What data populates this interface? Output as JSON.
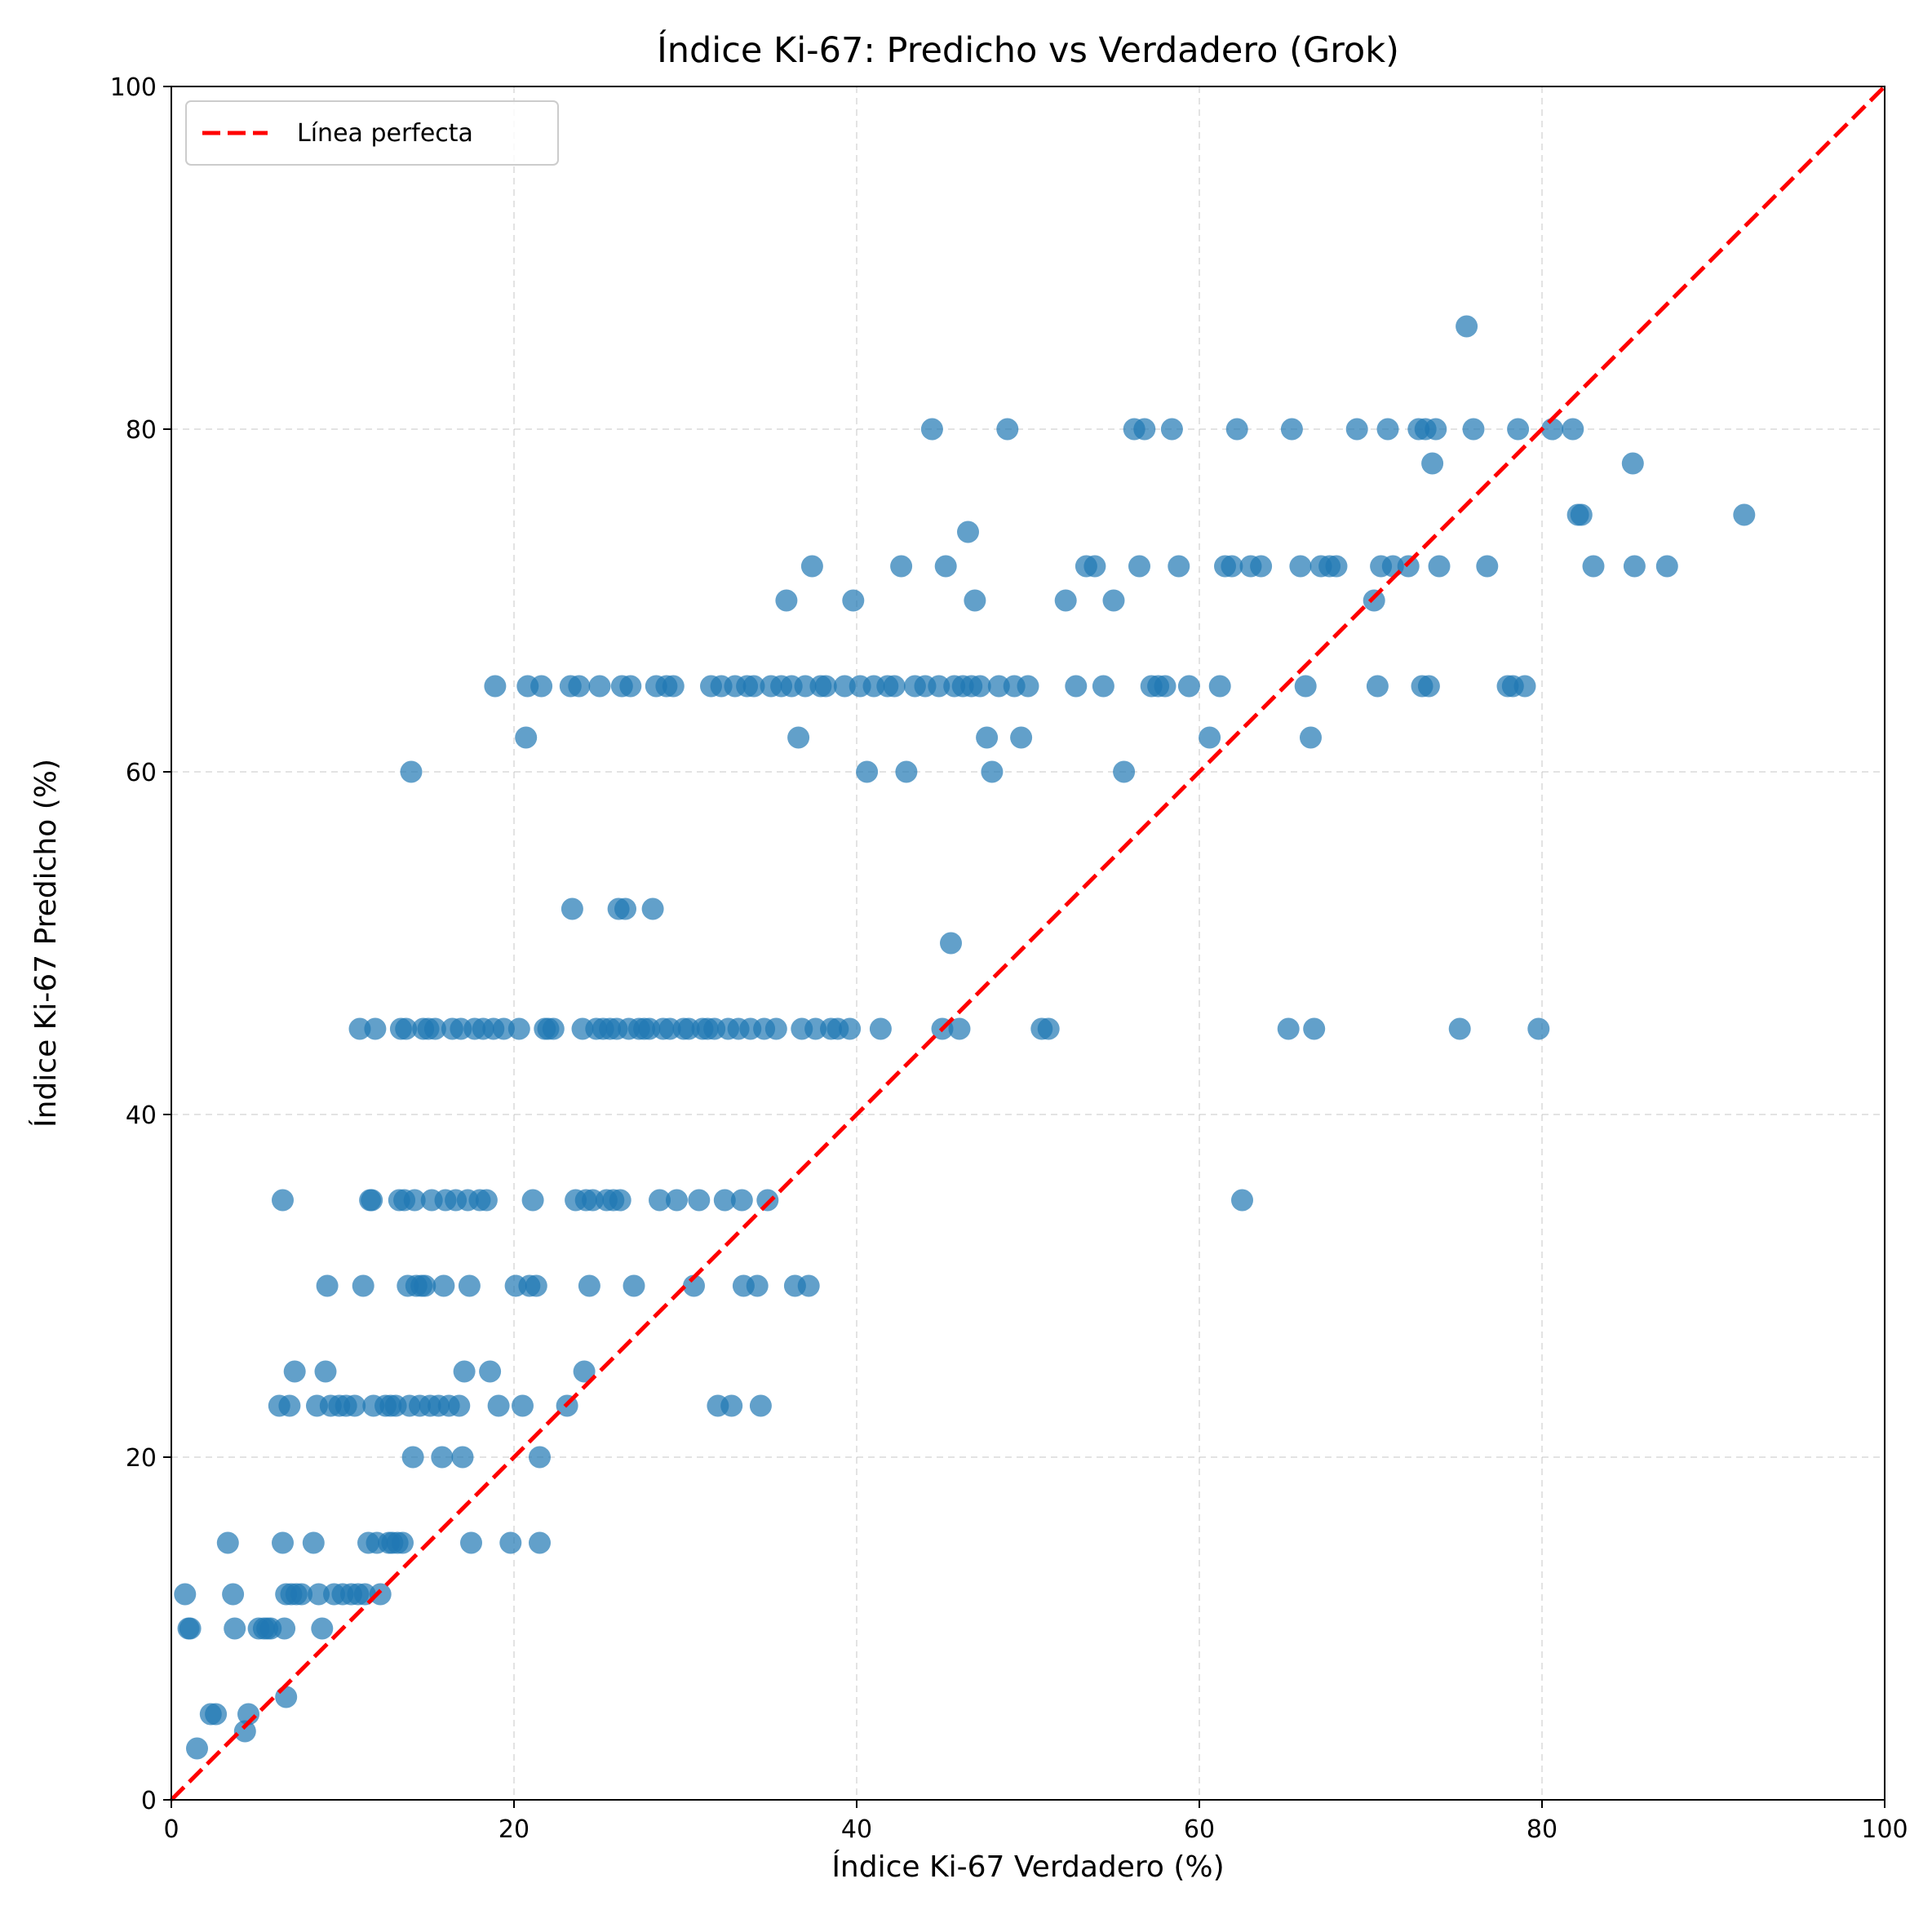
{
  "chart_data": {
    "type": "scatter",
    "title": "Índice Ki-67: Predicho vs Verdadero (Grok)",
    "xlabel": "Índice Ki-67 Verdadero (%)",
    "ylabel": "Índice Ki-67 Predicho (%)",
    "xlim": [
      0,
      100
    ],
    "ylim": [
      0,
      100
    ],
    "xticks": [
      "0",
      "20",
      "40",
      "60",
      "80",
      "100"
    ],
    "yticks": [
      "0",
      "20",
      "40",
      "60",
      "80",
      "100"
    ],
    "grid": true,
    "legend": {
      "position": "top-left",
      "entries": [
        "Línea perfecta"
      ]
    },
    "colors": {
      "points": "#1f77b4",
      "perfect_line": "#ff0000"
    },
    "reference_line": {
      "name": "Línea perfecta",
      "x": [
        0,
        100
      ],
      "y": [
        0,
        100
      ],
      "style": "dashed"
    },
    "points": [
      [
        0.8,
        12
      ],
      [
        1.0,
        10
      ],
      [
        1.1,
        10
      ],
      [
        1.5,
        3
      ],
      [
        2.3,
        5
      ],
      [
        2.6,
        5
      ],
      [
        3.3,
        15
      ],
      [
        3.6,
        12
      ],
      [
        3.7,
        10
      ],
      [
        4.3,
        4
      ],
      [
        4.5,
        5
      ],
      [
        5.1,
        10
      ],
      [
        5.4,
        10
      ],
      [
        5.6,
        10
      ],
      [
        5.8,
        10
      ],
      [
        6.3,
        23
      ],
      [
        6.5,
        35
      ],
      [
        6.5,
        15
      ],
      [
        6.6,
        10
      ],
      [
        6.7,
        6
      ],
      [
        6.7,
        12
      ],
      [
        6.9,
        23
      ],
      [
        7.0,
        12
      ],
      [
        7.2,
        25
      ],
      [
        7.3,
        12
      ],
      [
        7.6,
        12
      ],
      [
        8.3,
        15
      ],
      [
        8.5,
        23
      ],
      [
        8.6,
        12
      ],
      [
        8.8,
        10
      ],
      [
        9.0,
        25
      ],
      [
        9.1,
        30
      ],
      [
        9.3,
        23
      ],
      [
        9.5,
        12
      ],
      [
        9.8,
        23
      ],
      [
        10.0,
        12
      ],
      [
        10.2,
        23
      ],
      [
        10.5,
        12
      ],
      [
        10.7,
        23
      ],
      [
        10.9,
        12
      ],
      [
        11.0,
        45
      ],
      [
        11.2,
        30
      ],
      [
        11.3,
        12
      ],
      [
        11.5,
        15
      ],
      [
        11.6,
        35
      ],
      [
        11.7,
        35
      ],
      [
        11.8,
        23
      ],
      [
        11.9,
        45
      ],
      [
        12.0,
        15
      ],
      [
        12.2,
        12
      ],
      [
        12.5,
        23
      ],
      [
        12.7,
        15
      ],
      [
        12.8,
        23
      ],
      [
        12.9,
        15
      ],
      [
        13.1,
        23
      ],
      [
        13.2,
        15
      ],
      [
        13.3,
        35
      ],
      [
        13.4,
        45
      ],
      [
        13.5,
        15
      ],
      [
        13.6,
        35
      ],
      [
        13.7,
        45
      ],
      [
        13.8,
        30
      ],
      [
        13.9,
        23
      ],
      [
        14.0,
        60
      ],
      [
        14.1,
        20
      ],
      [
        14.2,
        35
      ],
      [
        14.3,
        30
      ],
      [
        14.5,
        23
      ],
      [
        14.6,
        30
      ],
      [
        14.7,
        45
      ],
      [
        14.8,
        30
      ],
      [
        15.0,
        45
      ],
      [
        15.1,
        23
      ],
      [
        15.2,
        35
      ],
      [
        15.4,
        45
      ],
      [
        15.6,
        23
      ],
      [
        15.8,
        20
      ],
      [
        15.9,
        30
      ],
      [
        16.0,
        35
      ],
      [
        16.2,
        23
      ],
      [
        16.4,
        45
      ],
      [
        16.6,
        35
      ],
      [
        16.8,
        23
      ],
      [
        16.9,
        45
      ],
      [
        17.0,
        20
      ],
      [
        17.1,
        25
      ],
      [
        17.3,
        35
      ],
      [
        17.4,
        30
      ],
      [
        17.5,
        15
      ],
      [
        17.7,
        45
      ],
      [
        18.0,
        35
      ],
      [
        18.2,
        45
      ],
      [
        18.4,
        35
      ],
      [
        18.6,
        25
      ],
      [
        18.8,
        45
      ],
      [
        18.9,
        65
      ],
      [
        19.1,
        23
      ],
      [
        19.4,
        45
      ],
      [
        19.8,
        15
      ],
      [
        20.1,
        30
      ],
      [
        20.3,
        45
      ],
      [
        20.5,
        23
      ],
      [
        20.7,
        62
      ],
      [
        20.8,
        65
      ],
      [
        20.9,
        30
      ],
      [
        21.1,
        35
      ],
      [
        21.3,
        30
      ],
      [
        21.5,
        20
      ],
      [
        21.5,
        15
      ],
      [
        21.6,
        65
      ],
      [
        21.8,
        45
      ],
      [
        22.0,
        45
      ],
      [
        22.3,
        45
      ],
      [
        23.1,
        23
      ],
      [
        23.3,
        65
      ],
      [
        23.4,
        52
      ],
      [
        23.6,
        35
      ],
      [
        23.8,
        65
      ],
      [
        24.0,
        45
      ],
      [
        24.1,
        25
      ],
      [
        24.2,
        35
      ],
      [
        24.4,
        30
      ],
      [
        24.6,
        35
      ],
      [
        24.8,
        45
      ],
      [
        25.0,
        65
      ],
      [
        25.2,
        45
      ],
      [
        25.4,
        35
      ],
      [
        25.6,
        45
      ],
      [
        25.8,
        35
      ],
      [
        26.0,
        45
      ],
      [
        26.1,
        52
      ],
      [
        26.2,
        35
      ],
      [
        26.3,
        65
      ],
      [
        26.5,
        52
      ],
      [
        26.7,
        45
      ],
      [
        26.8,
        65
      ],
      [
        27.0,
        30
      ],
      [
        27.3,
        45
      ],
      [
        27.6,
        45
      ],
      [
        27.9,
        45
      ],
      [
        28.1,
        52
      ],
      [
        28.3,
        65
      ],
      [
        28.5,
        35
      ],
      [
        28.7,
        45
      ],
      [
        28.9,
        65
      ],
      [
        29.1,
        45
      ],
      [
        29.3,
        65
      ],
      [
        29.5,
        35
      ],
      [
        29.9,
        45
      ],
      [
        30.2,
        45
      ],
      [
        30.5,
        30
      ],
      [
        30.8,
        35
      ],
      [
        31.0,
        45
      ],
      [
        31.3,
        45
      ],
      [
        31.5,
        65
      ],
      [
        31.7,
        45
      ],
      [
        31.9,
        23
      ],
      [
        32.1,
        65
      ],
      [
        32.3,
        35
      ],
      [
        32.5,
        45
      ],
      [
        32.7,
        23
      ],
      [
        32.9,
        65
      ],
      [
        33.1,
        45
      ],
      [
        33.3,
        35
      ],
      [
        33.4,
        30
      ],
      [
        33.6,
        65
      ],
      [
        33.8,
        45
      ],
      [
        34.0,
        65
      ],
      [
        34.2,
        30
      ],
      [
        34.4,
        23
      ],
      [
        34.6,
        45
      ],
      [
        34.8,
        35
      ],
      [
        35.0,
        65
      ],
      [
        35.3,
        45
      ],
      [
        35.6,
        65
      ],
      [
        35.9,
        70
      ],
      [
        36.2,
        65
      ],
      [
        36.4,
        30
      ],
      [
        36.6,
        62
      ],
      [
        36.8,
        45
      ],
      [
        37.0,
        65
      ],
      [
        37.2,
        30
      ],
      [
        37.4,
        72
      ],
      [
        37.6,
        45
      ],
      [
        37.9,
        65
      ],
      [
        38.2,
        65
      ],
      [
        38.5,
        45
      ],
      [
        38.9,
        45
      ],
      [
        39.3,
        65
      ],
      [
        39.6,
        45
      ],
      [
        39.8,
        70
      ],
      [
        40.2,
        65
      ],
      [
        40.6,
        60
      ],
      [
        41.0,
        65
      ],
      [
        41.4,
        45
      ],
      [
        41.8,
        65
      ],
      [
        42.2,
        65
      ],
      [
        42.6,
        72
      ],
      [
        42.9,
        60
      ],
      [
        43.4,
        65
      ],
      [
        44.0,
        65
      ],
      [
        44.4,
        80
      ],
      [
        44.8,
        65
      ],
      [
        45.0,
        45
      ],
      [
        45.2,
        72
      ],
      [
        45.5,
        50
      ],
      [
        45.7,
        65
      ],
      [
        46.0,
        45
      ],
      [
        46.2,
        65
      ],
      [
        46.5,
        74
      ],
      [
        46.7,
        65
      ],
      [
        46.9,
        70
      ],
      [
        47.2,
        65
      ],
      [
        47.6,
        62
      ],
      [
        47.9,
        60
      ],
      [
        48.3,
        65
      ],
      [
        48.8,
        80
      ],
      [
        49.2,
        65
      ],
      [
        49.6,
        62
      ],
      [
        50.0,
        65
      ],
      [
        50.8,
        45
      ],
      [
        51.2,
        45
      ],
      [
        52.2,
        70
      ],
      [
        52.8,
        65
      ],
      [
        53.4,
        72
      ],
      [
        53.9,
        72
      ],
      [
        54.4,
        65
      ],
      [
        55.0,
        70
      ],
      [
        55.6,
        60
      ],
      [
        56.2,
        80
      ],
      [
        56.5,
        72
      ],
      [
        56.8,
        80
      ],
      [
        57.2,
        65
      ],
      [
        57.6,
        65
      ],
      [
        58.0,
        65
      ],
      [
        58.4,
        80
      ],
      [
        58.8,
        72
      ],
      [
        59.4,
        65
      ],
      [
        60.6,
        62
      ],
      [
        61.2,
        65
      ],
      [
        61.5,
        72
      ],
      [
        61.9,
        72
      ],
      [
        62.2,
        80
      ],
      [
        62.5,
        35
      ],
      [
        63.0,
        72
      ],
      [
        63.6,
        72
      ],
      [
        65.2,
        45
      ],
      [
        65.4,
        80
      ],
      [
        65.9,
        72
      ],
      [
        66.2,
        65
      ],
      [
        66.5,
        62
      ],
      [
        66.7,
        45
      ],
      [
        67.1,
        72
      ],
      [
        67.6,
        72
      ],
      [
        68.0,
        72
      ],
      [
        69.2,
        80
      ],
      [
        70.2,
        70
      ],
      [
        70.4,
        65
      ],
      [
        70.6,
        72
      ],
      [
        71.0,
        80
      ],
      [
        71.3,
        72
      ],
      [
        72.2,
        72
      ],
      [
        72.8,
        80
      ],
      [
        73.0,
        65
      ],
      [
        73.2,
        80
      ],
      [
        73.4,
        65
      ],
      [
        73.6,
        78
      ],
      [
        73.8,
        80
      ],
      [
        74.0,
        72
      ],
      [
        75.2,
        45
      ],
      [
        75.6,
        86
      ],
      [
        76.0,
        80
      ],
      [
        76.8,
        72
      ],
      [
        78.0,
        65
      ],
      [
        78.3,
        65
      ],
      [
        78.6,
        80
      ],
      [
        79.0,
        65
      ],
      [
        79.8,
        45
      ],
      [
        80.6,
        80
      ],
      [
        81.8,
        80
      ],
      [
        82.1,
        75
      ],
      [
        82.3,
        75
      ],
      [
        83.0,
        72
      ],
      [
        85.3,
        78
      ],
      [
        85.4,
        72
      ],
      [
        87.3,
        72
      ],
      [
        91.8,
        75
      ]
    ]
  }
}
